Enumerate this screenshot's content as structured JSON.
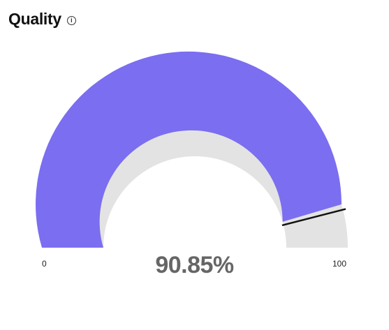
{
  "widget": {
    "title": "Quality",
    "info_icon": "info-icon"
  },
  "gauge": {
    "min_label": "0",
    "max_label": "100",
    "value_label": "90.85%",
    "value": 90.85,
    "min": 0,
    "max": 100,
    "target": 92,
    "colors": {
      "fill": "#7B6EF0",
      "track": "#E3E3E3",
      "target_marker": "#111111",
      "value_text": "#666666"
    }
  }
}
